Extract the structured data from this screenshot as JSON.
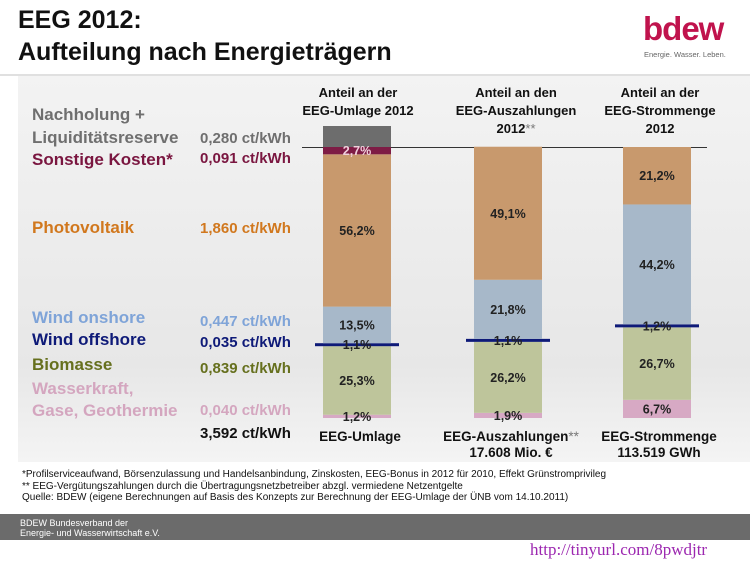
{
  "title_line1": "EEG 2012:",
  "title_line2": "Aufteilung nach Energieträgern",
  "logo": {
    "word": "bdew",
    "tagline": "Energie. Wasser. Leben."
  },
  "rows": {
    "nachholung": {
      "label1": "Nachholung +",
      "label2": "Liquiditätsreserve",
      "value": "0,280 ct/kWh",
      "color": "#6f6f6f"
    },
    "sonstige": {
      "label": "Sonstige Kosten*",
      "value": "0,091 ct/kWh",
      "color": "#7a1640"
    },
    "photovoltaik": {
      "label": "Photovoltaik",
      "value": "1,860 ct/kWh",
      "color": "#d1781e"
    },
    "wind_on": {
      "label": "Wind onshore",
      "value": "0,447 ct/kWh",
      "color": "#7fa4d8"
    },
    "wind_off": {
      "label": "Wind offshore",
      "value": "0,035 ct/kWh",
      "color": "#0e1a78"
    },
    "biomasse": {
      "label": "Biomasse",
      "value": "0,839 ct/kWh",
      "color": "#66701e"
    },
    "wasser": {
      "label1": "Wasserkraft,",
      "label2": "Gase, Geothermie",
      "value": "0,040 ct/kWh",
      "color": "#d4a6bf"
    },
    "total": {
      "value": "3,592 ct/kWh"
    }
  },
  "columns": [
    {
      "header": [
        "Anteil an der",
        "EEG-Umlage 2012"
      ],
      "footer": [
        "EEG-Umlage"
      ]
    },
    {
      "header": [
        "Anteil an den",
        "EEG-Auszahlungen",
        "2012"
      ],
      "header_ast": "**",
      "footer": [
        "EEG-Auszahlungen",
        "17.608 Mio. €"
      ],
      "footer_ast": "**"
    },
    {
      "header": [
        "Anteil an der",
        "EEG-Strommenge",
        "2012"
      ],
      "footer": [
        "EEG-Strommenge",
        "113.519 GWh"
      ]
    }
  ],
  "chart_data": {
    "type": "bar",
    "stacked": true,
    "title": "Aufteilung nach Energieträgern",
    "categories": [
      "EEG-Umlage",
      "EEG-Auszahlungen",
      "EEG-Strommenge"
    ],
    "series": [
      {
        "name": "Wasserkraft, Gase, Geothermie",
        "color": "#d7a9c4",
        "values": [
          1.2,
          1.9,
          6.7
        ],
        "labels": [
          "1,2%",
          "1,9%",
          "6,7%"
        ]
      },
      {
        "name": "Biomasse",
        "color": "#bec59b",
        "values": [
          25.3,
          26.2,
          26.7
        ],
        "labels": [
          "25,3%",
          "26,2%",
          "26,7%"
        ]
      },
      {
        "name": "Wind offshore",
        "color": "#0e1a78",
        "values": [
          1.1,
          1.1,
          1.2
        ],
        "labels": [
          "1,1%",
          "1,1%",
          "1,2%"
        ]
      },
      {
        "name": "Wind onshore",
        "color": "#a7b8c9",
        "values": [
          13.5,
          21.8,
          44.2
        ],
        "labels": [
          "13,5%",
          "21,8%",
          "44,2%"
        ]
      },
      {
        "name": "Photovoltaik",
        "color": "#c8996d",
        "values": [
          56.2,
          49.1,
          21.2
        ],
        "labels": [
          "56,2%",
          "49,1%",
          "21,2%"
        ]
      },
      {
        "name": "Sonstige Kosten",
        "color": "#7e1c45",
        "values": [
          2.7,
          null,
          null
        ],
        "labels": [
          "2,7%",
          null,
          null
        ]
      },
      {
        "name": "Nachholung + Liquiditätsreserve",
        "color": "#6d6d6d",
        "values": [
          null,
          null,
          null
        ],
        "labels": [
          null,
          null,
          null
        ]
      }
    ]
  },
  "footnotes": [
    "*Profilserviceaufwand, Börsenzulassung und Handelsanbindung, Zinskosten, EEG-Bonus in 2012 für 2010, Effekt Grünstromprivileg",
    "** EEG-Vergütungszahlungen durch die Übertragungsnetzbetreiber abzgl. vermiedene Netzentgelte",
    "Quelle: BDEW (eigene Berechnungen auf Basis des Konzepts zur Berechnung der EEG-Umlage der ÜNB vom 14.10.2011)"
  ],
  "footer_org": [
    "BDEW Bundesverband der",
    "Energie- und Wasserwirtschaft e.V."
  ],
  "url": "http://tinyurl.com/8pwdjtr"
}
